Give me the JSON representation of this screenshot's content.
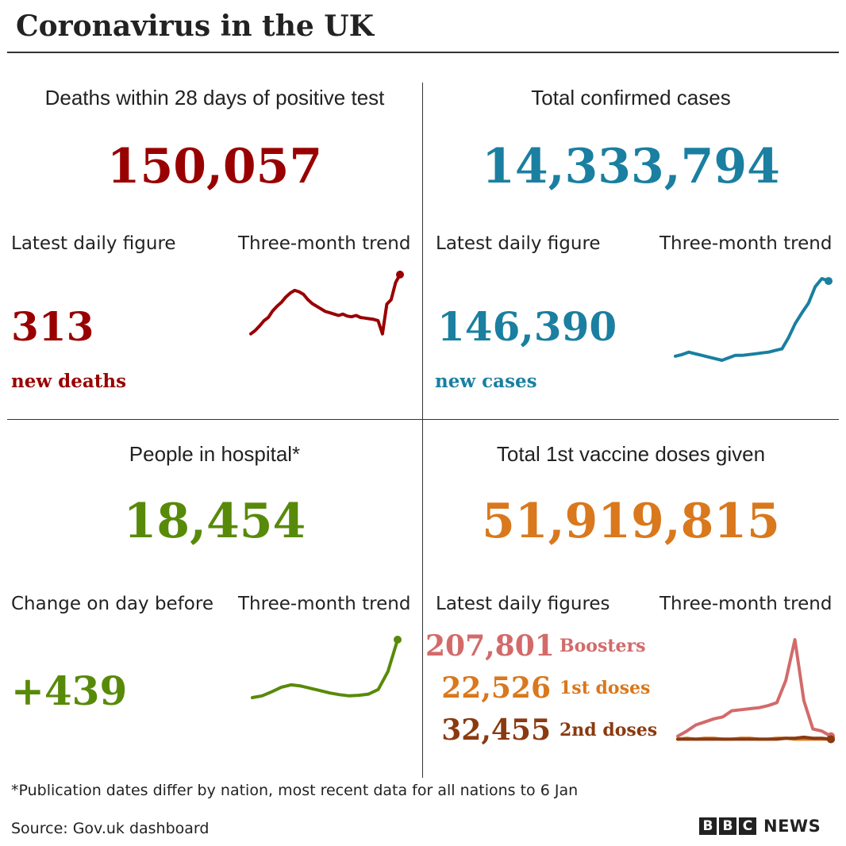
{
  "title": "Coronavirus in the UK",
  "colors": {
    "deaths": "#990000",
    "cases": "#1a7fa0",
    "hospital": "#588a09",
    "vaccine": "#d9781c",
    "boosters": "#d36a6a",
    "first_doses": "#d9781c",
    "second_doses": "#8a3a10",
    "divider": "#333333"
  },
  "panels": {
    "deaths": {
      "heading": "Deaths within 28 days of positive test",
      "total": "150,057",
      "daily_label": "Latest daily figure",
      "trend_label": "Three-month trend",
      "daily_value": "313",
      "daily_unit": "new deaths"
    },
    "cases": {
      "heading": "Total confirmed cases",
      "total": "14,333,794",
      "daily_label": "Latest daily figure",
      "trend_label": "Three-month trend",
      "daily_value": "146,390",
      "daily_unit": "new cases"
    },
    "hospital": {
      "heading": "People in hospital*",
      "total": "18,454",
      "daily_label": "Change on day before",
      "trend_label": "Three-month trend",
      "daily_value": "+439"
    },
    "vaccine": {
      "heading": "Total 1st vaccine doses given",
      "total": "51,919,815",
      "daily_label": "Latest daily figures",
      "trend_label": "Three-month trend",
      "rows": [
        {
          "value": "207,801",
          "label": "Boosters"
        },
        {
          "value": "22,526",
          "label": "1st doses"
        },
        {
          "value": "32,455",
          "label": "2nd doses"
        }
      ]
    }
  },
  "footnote": "*Publication dates differ by nation, most recent data for all nations to 6 Jan",
  "source": "Source: Gov.uk dashboard",
  "logo": {
    "letters": [
      "B",
      "B",
      "C"
    ],
    "word": "NEWS"
  },
  "chart_data": [
    {
      "type": "line",
      "series": [
        {
          "values": [
            0.1,
            0.15,
            0.22,
            0.3,
            0.35,
            0.45,
            0.52,
            0.58,
            0.66,
            0.72,
            0.76,
            0.74,
            0.7,
            0.62,
            0.56,
            0.52,
            0.48,
            0.44,
            0.42,
            0.4,
            0.38,
            0.4,
            0.37,
            0.36,
            0.38,
            0.35,
            0.34,
            0.33,
            0.32,
            0.3,
            0.1,
            0.55,
            0.62,
            0.88,
            1.0
          ]
        }
      ]
    },
    {
      "type": "line",
      "series": [
        {
          "values": [
            0.05,
            0.07,
            0.1,
            0.08,
            0.06,
            0.04,
            0.02,
            0.0,
            0.03,
            0.06,
            0.06,
            0.07,
            0.08,
            0.09,
            0.1,
            0.12,
            0.14,
            0.28,
            0.45,
            0.58,
            0.7,
            0.9,
            1.0,
            0.97
          ]
        }
      ]
    },
    {
      "type": "line",
      "series": [
        {
          "values": [
            0.0,
            0.03,
            0.1,
            0.18,
            0.22,
            0.2,
            0.16,
            0.12,
            0.08,
            0.05,
            0.03,
            0.04,
            0.06,
            0.14,
            0.45,
            1.0
          ]
        }
      ]
    },
    {
      "type": "line",
      "series": [
        {
          "values": [
            0.05,
            0.1,
            0.16,
            0.19,
            0.22,
            0.24,
            0.3,
            0.31,
            0.32,
            0.33,
            0.35,
            0.38,
            0.6,
            1.0,
            0.4,
            0.12,
            0.1,
            0.05
          ]
        },
        {
          "values": [
            0.02,
            0.03,
            0.02,
            0.03,
            0.03,
            0.02,
            0.02,
            0.03,
            0.03,
            0.02,
            0.02,
            0.03,
            0.03,
            0.02,
            0.02,
            0.02,
            0.02,
            0.02
          ]
        },
        {
          "values": [
            0.02,
            0.02,
            0.02,
            0.02,
            0.02,
            0.02,
            0.02,
            0.02,
            0.02,
            0.02,
            0.02,
            0.02,
            0.03,
            0.03,
            0.04,
            0.03,
            0.03,
            0.02
          ]
        }
      ]
    }
  ]
}
